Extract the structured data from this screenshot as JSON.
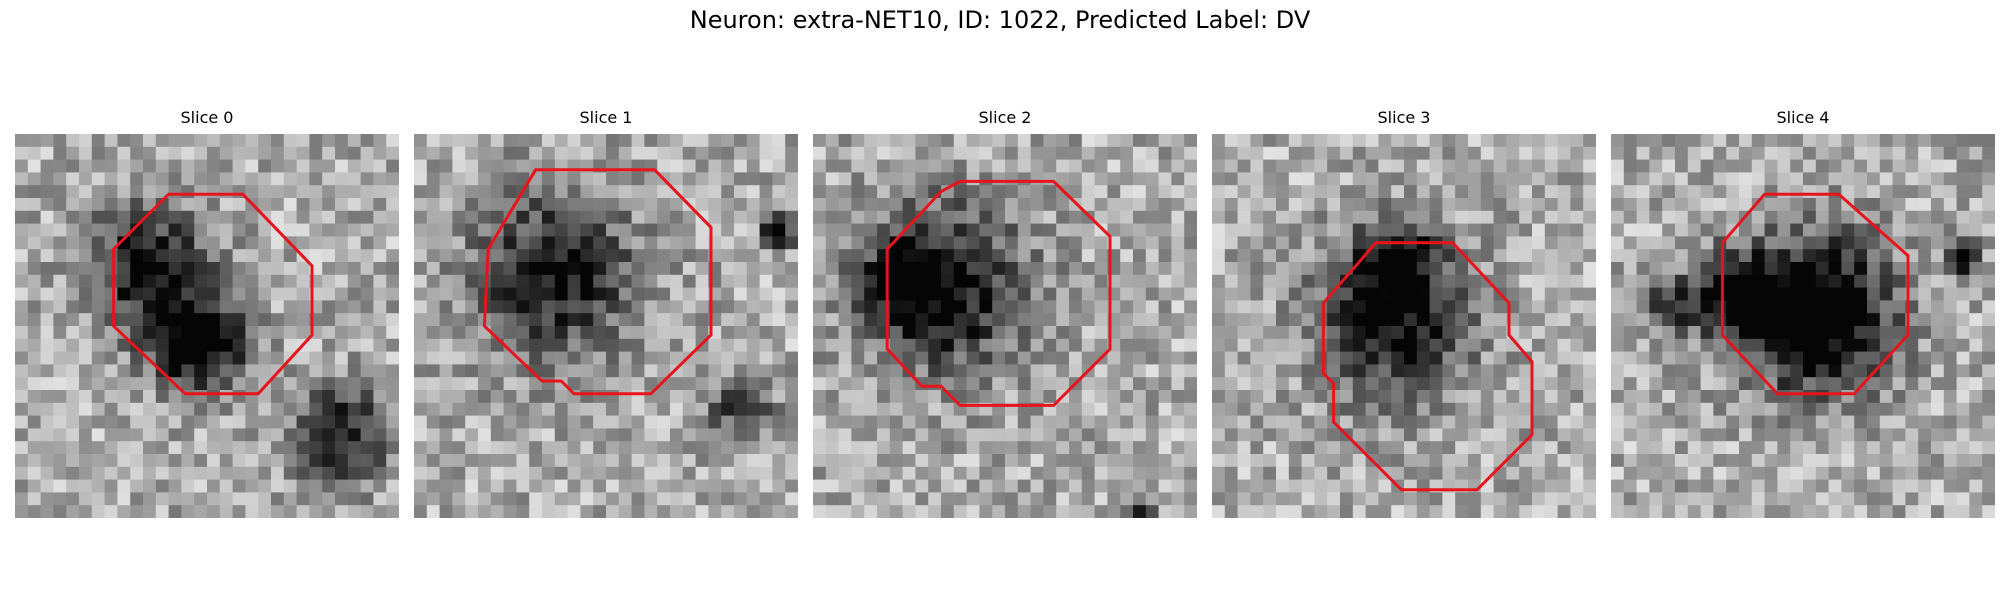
{
  "figure": {
    "title": "Neuron: extra-NET10, ID: 1022, Predicted Label: DV"
  },
  "outline_color": "#e8141b",
  "grid_size": 30,
  "panels": [
    {
      "title": "Slice 0",
      "seed": 11,
      "blobs": [
        [
          10,
          10,
          4.5,
          0.65
        ],
        [
          14,
          16,
          3.5,
          0.8
        ],
        [
          25,
          23,
          3.5,
          0.6
        ]
      ],
      "outline": [
        [
          12,
          4.7
        ],
        [
          17.8,
          4.7
        ],
        [
          23.2,
          10.3
        ],
        [
          23.2,
          15.7
        ],
        [
          19,
          20.3
        ],
        [
          13.3,
          20.3
        ],
        [
          7.7,
          15
        ],
        [
          7.7,
          9
        ]
      ]
    },
    {
      "title": "Slice 1",
      "seed": 29,
      "blobs": [
        [
          10.5,
          10.5,
          6,
          0.6
        ],
        [
          28,
          7,
          1.2,
          0.7
        ],
        [
          25,
          21,
          2.5,
          0.4
        ]
      ],
      "outline": [
        [
          9.5,
          2.8
        ],
        [
          18.8,
          2.8
        ],
        [
          23.2,
          7.3
        ],
        [
          23.2,
          15.7
        ],
        [
          18.5,
          20.3
        ],
        [
          12.5,
          20.3
        ],
        [
          11.5,
          19.3
        ],
        [
          10,
          19.3
        ],
        [
          5.5,
          15
        ],
        [
          5.8,
          9
        ]
      ]
    },
    {
      "title": "Slice 2",
      "seed": 47,
      "blobs": [
        [
          9.5,
          11.5,
          6,
          0.7
        ],
        [
          6,
          11,
          2.5,
          0.4
        ],
        [
          25.5,
          29.5,
          1.0,
          0.6
        ]
      ],
      "outline": [
        [
          10,
          4.5
        ],
        [
          11.5,
          3.7
        ],
        [
          18.8,
          3.7
        ],
        [
          23.2,
          8
        ],
        [
          23.2,
          16.8
        ],
        [
          18.8,
          21.2
        ],
        [
          11.5,
          21.2
        ],
        [
          10,
          19.7
        ],
        [
          8.5,
          19.7
        ],
        [
          5.8,
          16.8
        ],
        [
          5.8,
          9
        ]
      ]
    },
    {
      "title": "Slice 3",
      "seed": 73,
      "blobs": [
        [
          13.5,
          14,
          5.5,
          0.7
        ],
        [
          14,
          9,
          3,
          0.45
        ]
      ],
      "outline": [
        [
          12.8,
          8.5
        ],
        [
          18.8,
          8.5
        ],
        [
          23.2,
          13.2
        ],
        [
          23.2,
          15.7
        ],
        [
          25,
          17.8
        ],
        [
          25,
          23.5
        ],
        [
          20.7,
          27.8
        ],
        [
          14.8,
          27.8
        ],
        [
          9.5,
          22.5
        ],
        [
          9.5,
          19.5
        ],
        [
          8.7,
          18.7
        ],
        [
          8.7,
          13.2
        ]
      ]
    },
    {
      "title": "Slice 4",
      "seed": 97,
      "blobs": [
        [
          15.5,
          13.5,
          5.5,
          0.95
        ],
        [
          9,
          12,
          3,
          0.6
        ],
        [
          27,
          9,
          1.3,
          0.7
        ],
        [
          4,
          13,
          2,
          0.5
        ]
      ],
      "outline": [
        [
          12,
          4.7
        ],
        [
          17.8,
          4.7
        ],
        [
          23.2,
          9.5
        ],
        [
          23.2,
          15.7
        ],
        [
          19,
          20.3
        ],
        [
          13,
          20.3
        ],
        [
          8.7,
          15.7
        ],
        [
          8.7,
          8.5
        ]
      ]
    }
  ]
}
